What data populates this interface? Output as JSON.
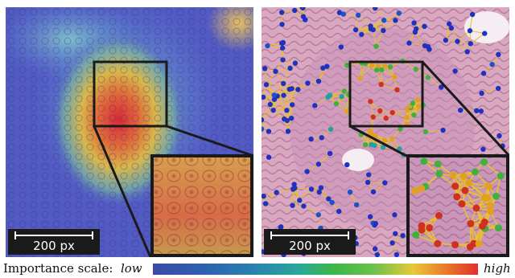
{
  "left_panel": {
    "scale_label": "200 px"
  },
  "right_panel": {
    "scale_label": "200 px"
  },
  "legend": {
    "label": "Importance scale:",
    "low": "low",
    "high": "high",
    "colors": [
      "#3b4aa8",
      "#2aa89a",
      "#3bb54a",
      "#e8c83a",
      "#e0302a"
    ]
  }
}
